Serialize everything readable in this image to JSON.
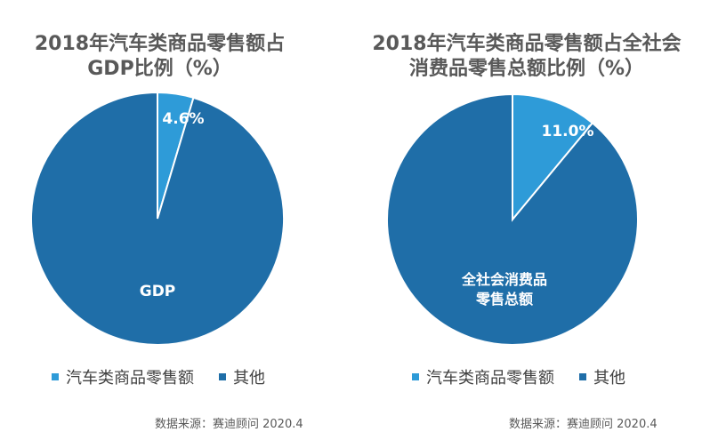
{
  "chart_data": [
    {
      "type": "pie",
      "title_lines": [
        "2018年汽车类商品零售额占",
        "GDP比例（%）"
      ],
      "categories": [
        "汽车类商品零售额",
        "其他"
      ],
      "values": [
        4.6,
        95.4
      ],
      "value_label": "4.6%",
      "center_label_lines": [
        "GDP"
      ],
      "legend": [
        "汽车类商品零售额",
        "其他"
      ],
      "colors": [
        "#2E9BD8",
        "#1F6EA8"
      ],
      "source": "数据来源：赛迪顾问 2020.4"
    },
    {
      "type": "pie",
      "title_lines": [
        "2018年汽车类商品零售额占全社会",
        "消费品零售总额比例（%）"
      ],
      "categories": [
        "汽车类商品零售额",
        "其他"
      ],
      "values": [
        11.0,
        89.0
      ],
      "value_label": "11.0%",
      "center_label_lines": [
        "全社会消费品",
        "零售总额"
      ],
      "legend": [
        "汽车类商品零售额",
        "其他"
      ],
      "colors": [
        "#2E9BD8",
        "#1F6EA8"
      ],
      "source": "数据来源：赛迪顾问 2020.4"
    }
  ]
}
